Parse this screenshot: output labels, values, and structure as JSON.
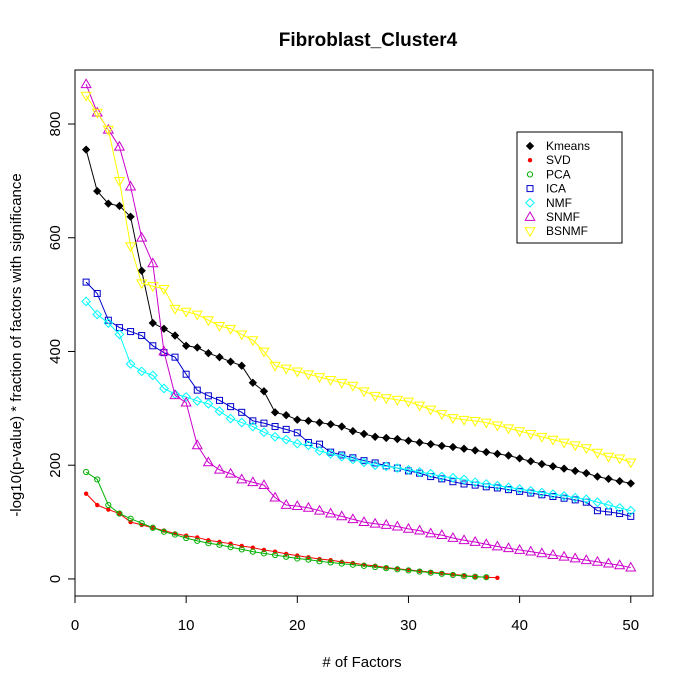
{
  "chart_data": {
    "type": "line",
    "title": "Fibroblast_Cluster4",
    "xlabel": "# of Factors",
    "ylabel": "-log10(p-value) * fraction of factors with significance",
    "xlim": [
      0,
      52
    ],
    "ylim": [
      -30,
      895
    ],
    "xticks": [
      0,
      10,
      20,
      30,
      40,
      50
    ],
    "yticks": [
      0,
      200,
      400,
      600,
      800
    ],
    "grid": false,
    "legend_position": "top-right",
    "series": [
      {
        "name": "Kmeans",
        "color": "#000000",
        "marker": "diamond-filled",
        "x": [
          1,
          2,
          3,
          4,
          5,
          6,
          7,
          8,
          9,
          10,
          11,
          12,
          13,
          14,
          15,
          16,
          17,
          18,
          19,
          20,
          21,
          22,
          23,
          24,
          25,
          26,
          27,
          28,
          29,
          30,
          31,
          32,
          33,
          34,
          35,
          36,
          37,
          38,
          39,
          40,
          41,
          42,
          43,
          44,
          45,
          46,
          47,
          48,
          49,
          50
        ],
        "y": [
          755,
          682,
          660,
          656,
          637,
          542,
          450,
          440,
          428,
          410,
          407,
          397,
          390,
          382,
          375,
          345,
          330,
          293,
          288,
          280,
          278,
          275,
          272,
          268,
          260,
          255,
          250,
          248,
          246,
          243,
          240,
          237,
          234,
          232,
          229,
          226,
          223,
          220,
          217,
          212,
          207,
          202,
          198,
          194,
          190,
          186,
          180,
          176,
          172,
          168
        ]
      },
      {
        "name": "SVD",
        "color": "#ff0000",
        "marker": "dot",
        "x": [
          1,
          2,
          3,
          4,
          5,
          6,
          7,
          8,
          9,
          10,
          11,
          12,
          13,
          14,
          15,
          16,
          17,
          18,
          19,
          20,
          21,
          22,
          23,
          24,
          25,
          26,
          27,
          28,
          29,
          30,
          31,
          32,
          33,
          34,
          35,
          36,
          37,
          38
        ],
        "y": [
          150,
          130,
          122,
          115,
          100,
          95,
          90,
          85,
          80,
          76,
          73,
          68,
          65,
          62,
          58,
          55,
          51,
          48,
          44,
          41,
          38,
          35,
          33,
          30,
          28,
          25,
          23,
          20,
          18,
          16,
          14,
          12,
          10,
          8,
          6,
          4,
          3,
          2
        ]
      },
      {
        "name": "PCA",
        "color": "#00b000",
        "marker": "circle-open",
        "x": [
          1,
          2,
          3,
          4,
          5,
          6,
          7,
          8,
          9,
          10,
          11,
          12,
          13,
          14,
          15,
          16,
          17,
          18,
          19,
          20,
          21,
          22,
          23,
          24,
          25,
          26,
          27,
          28,
          29,
          30,
          31,
          32,
          33,
          34,
          35,
          36,
          37
        ],
        "y": [
          188,
          175,
          130,
          115,
          106,
          98,
          90,
          83,
          78,
          72,
          67,
          63,
          60,
          56,
          52,
          48,
          45,
          42,
          39,
          36,
          34,
          31,
          29,
          27,
          25,
          23,
          21,
          19,
          17,
          15,
          13,
          11,
          9,
          7,
          5,
          4,
          3
        ]
      },
      {
        "name": "ICA",
        "color": "#0000cc",
        "marker": "square-open",
        "x": [
          1,
          2,
          3,
          4,
          5,
          6,
          7,
          8,
          9,
          10,
          11,
          12,
          13,
          14,
          15,
          16,
          17,
          18,
          19,
          20,
          21,
          22,
          23,
          24,
          25,
          26,
          27,
          28,
          29,
          30,
          31,
          32,
          33,
          34,
          35,
          36,
          37,
          38,
          39,
          40,
          41,
          42,
          43,
          44,
          45,
          46,
          47,
          48,
          49,
          50
        ],
        "y": [
          522,
          502,
          455,
          442,
          435,
          428,
          410,
          398,
          390,
          360,
          332,
          322,
          314,
          303,
          293,
          278,
          274,
          268,
          263,
          257,
          240,
          237,
          223,
          218,
          213,
          208,
          204,
          199,
          195,
          190,
          186,
          180,
          176,
          171,
          167,
          165,
          162,
          160,
          157,
          154,
          151,
          148,
          145,
          142,
          139,
          135,
          120,
          118,
          115,
          110
        ]
      },
      {
        "name": "NMF",
        "color": "#00ffff",
        "marker": "diamond-open",
        "x": [
          1,
          2,
          3,
          4,
          5,
          6,
          7,
          8,
          9,
          10,
          11,
          12,
          13,
          14,
          15,
          16,
          17,
          18,
          19,
          20,
          21,
          22,
          23,
          24,
          25,
          26,
          27,
          28,
          29,
          30,
          31,
          32,
          33,
          34,
          35,
          36,
          37,
          38,
          39,
          40,
          41,
          42,
          43,
          44,
          45,
          46,
          47,
          48,
          49,
          50
        ],
        "y": [
          488,
          465,
          450,
          430,
          378,
          365,
          358,
          335,
          325,
          320,
          313,
          308,
          295,
          282,
          275,
          268,
          258,
          250,
          245,
          238,
          235,
          225,
          220,
          215,
          210,
          205,
          200,
          198,
          195,
          192,
          188,
          185,
          180,
          178,
          175,
          170,
          167,
          164,
          161,
          158,
          155,
          152,
          149,
          146,
          143,
          140,
          135,
          130,
          125,
          120
        ]
      },
      {
        "name": "SNMF",
        "color": "#cc00cc",
        "marker": "triangle-up-open",
        "x": [
          1,
          2,
          3,
          4,
          5,
          6,
          7,
          8,
          9,
          10,
          11,
          12,
          13,
          14,
          15,
          16,
          17,
          18,
          19,
          20,
          21,
          22,
          23,
          24,
          25,
          26,
          27,
          28,
          29,
          30,
          31,
          32,
          33,
          34,
          35,
          36,
          37,
          38,
          39,
          40,
          41,
          42,
          43,
          44,
          45,
          46,
          47,
          48,
          49,
          50
        ],
        "y": [
          870,
          820,
          790,
          760,
          690,
          600,
          555,
          400,
          323,
          310,
          235,
          205,
          192,
          185,
          175,
          170,
          165,
          143,
          130,
          128,
          125,
          120,
          115,
          110,
          105,
          100,
          97,
          95,
          92,
          88,
          85,
          80,
          77,
          72,
          68,
          65,
          61,
          57,
          54,
          51,
          48,
          45,
          42,
          39,
          36,
          33,
          30,
          27,
          24,
          20
        ]
      },
      {
        "name": "BSNMF",
        "color": "#ffff00",
        "marker": "triangle-down-open",
        "x": [
          1,
          2,
          3,
          4,
          5,
          6,
          7,
          8,
          9,
          10,
          11,
          12,
          13,
          14,
          15,
          16,
          17,
          18,
          19,
          20,
          21,
          22,
          23,
          24,
          25,
          26,
          27,
          28,
          29,
          30,
          31,
          32,
          33,
          34,
          35,
          36,
          37,
          38,
          39,
          40,
          41,
          42,
          43,
          44,
          45,
          46,
          47,
          48,
          49,
          50
        ],
        "y": [
          850,
          820,
          790,
          700,
          585,
          520,
          515,
          510,
          475,
          470,
          465,
          455,
          445,
          440,
          430,
          420,
          400,
          375,
          370,
          365,
          360,
          355,
          350,
          345,
          340,
          330,
          322,
          318,
          315,
          312,
          305,
          298,
          290,
          283,
          280,
          278,
          275,
          270,
          265,
          260,
          255,
          250,
          245,
          240,
          235,
          230,
          222,
          215,
          212,
          205
        ]
      }
    ]
  }
}
